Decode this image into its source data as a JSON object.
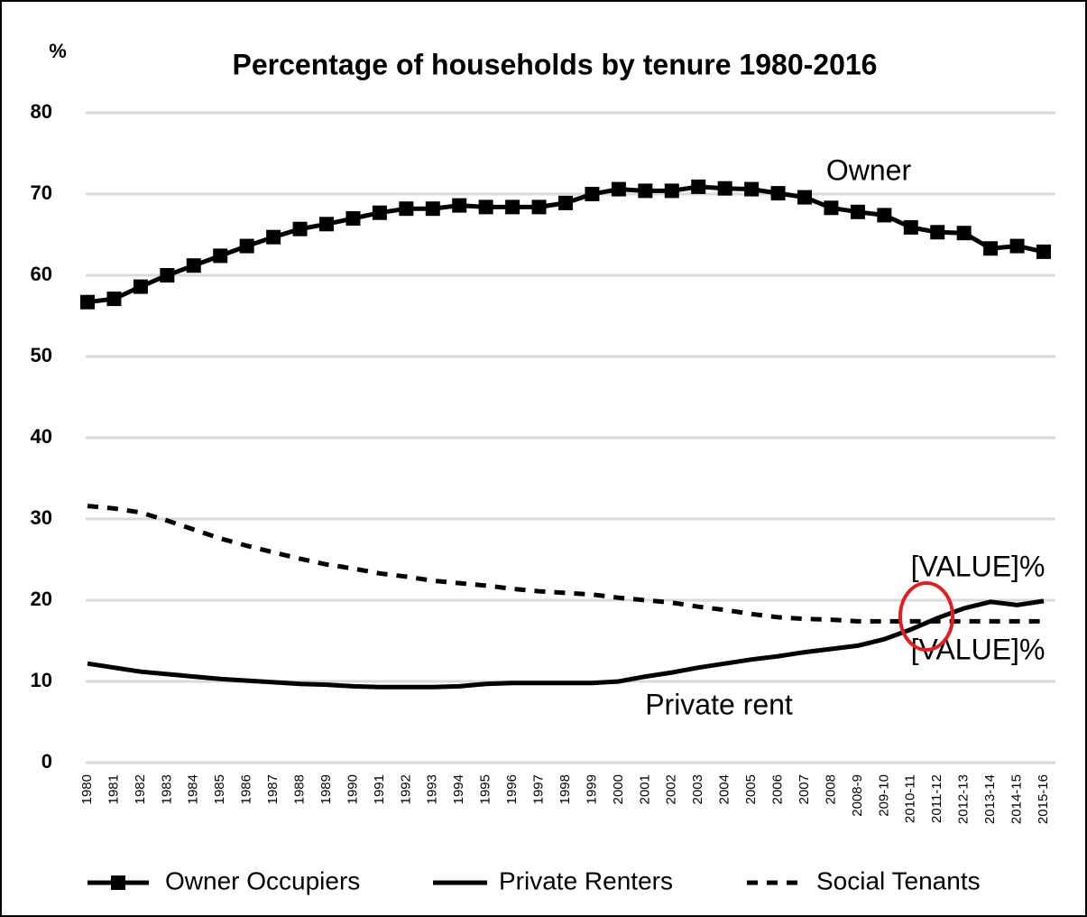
{
  "chart_data": {
    "type": "line",
    "title": "Percentage of households by tenure 1980-2016",
    "y_label": "%",
    "annotations": [
      "Owner",
      "Private rent",
      "[VALUE]%",
      "[VALUE]%"
    ],
    "categories": [
      "1980",
      "1981",
      "1982",
      "1983",
      "1984",
      "1985",
      "1986",
      "1987",
      "1988",
      "1989",
      "1990",
      "1991",
      "1992",
      "1993",
      "1994",
      "1995",
      "1996",
      "1997",
      "1998",
      "1999",
      "2000",
      "2001",
      "2002",
      "2003",
      "2004",
      "2005",
      "2006",
      "2007",
      "2008",
      "2008-9",
      "209-10",
      "2010-11",
      "2011-12",
      "2012-13",
      "2013-14",
      "2014-15",
      "2015-16"
    ],
    "series": [
      {
        "name": "Owner Occupiers",
        "color": "#000000",
        "marker": "square",
        "dash": "solid",
        "values": [
          56.7,
          57.1,
          58.6,
          60.0,
          61.2,
          62.4,
          63.6,
          64.7,
          65.7,
          66.3,
          67.0,
          67.7,
          68.2,
          68.2,
          68.6,
          68.4,
          68.4,
          68.4,
          68.9,
          70.0,
          70.6,
          70.4,
          70.4,
          70.9,
          70.7,
          70.6,
          70.1,
          69.6,
          68.3,
          67.8,
          67.4,
          65.9,
          65.3,
          65.2,
          63.3,
          63.6,
          62.9
        ]
      },
      {
        "name": "Private Renters",
        "color": "#000000",
        "marker": "none",
        "dash": "solid",
        "values": [
          12.2,
          11.7,
          11.2,
          10.9,
          10.6,
          10.3,
          10.1,
          9.9,
          9.7,
          9.6,
          9.4,
          9.3,
          9.3,
          9.3,
          9.4,
          9.7,
          9.8,
          9.8,
          9.8,
          9.8,
          10.0,
          10.6,
          11.1,
          11.7,
          12.2,
          12.7,
          13.1,
          13.6,
          14.0,
          14.4,
          15.2,
          16.4,
          17.8,
          19.0,
          19.8,
          19.4,
          19.9
        ]
      },
      {
        "name": "Social Tenants",
        "color": "#000000",
        "marker": "none",
        "dash": "dashed",
        "values": [
          31.6,
          31.3,
          30.8,
          29.8,
          28.7,
          27.6,
          26.7,
          25.9,
          25.1,
          24.4,
          23.9,
          23.3,
          22.9,
          22.4,
          22.1,
          21.8,
          21.4,
          21.1,
          20.9,
          20.7,
          20.3,
          20.0,
          19.7,
          19.2,
          18.8,
          18.3,
          17.9,
          17.7,
          17.6,
          17.4,
          17.4,
          17.4,
          17.4,
          17.4,
          17.4,
          17.4,
          17.4
        ]
      }
    ],
    "ylim": [
      0,
      80
    ],
    "yticks": [
      0,
      10,
      20,
      30,
      40,
      50,
      60,
      70,
      80
    ],
    "grid": true,
    "legend": "bottom"
  }
}
